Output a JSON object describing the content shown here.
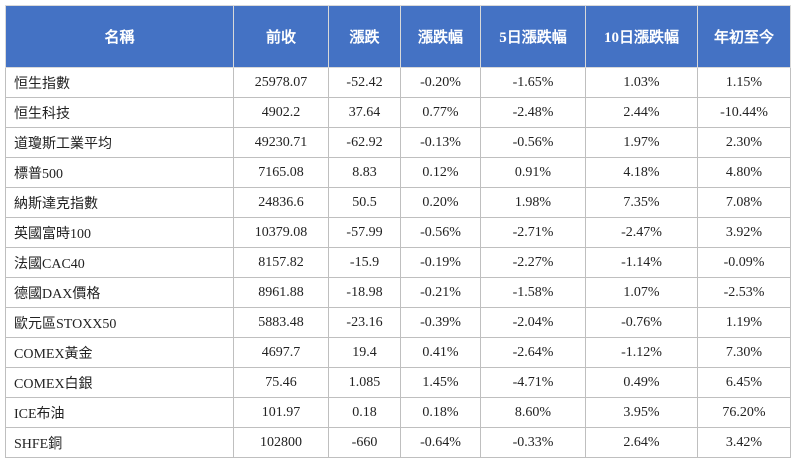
{
  "table": {
    "header": [
      "名稱",
      "前收",
      "漲跌",
      "漲跌幅",
      "5日漲跌幅",
      "10日漲跌幅",
      "年初至今"
    ],
    "rows": [
      [
        "恒生指數",
        "25978.07",
        "-52.42",
        "-0.20%",
        "-1.65%",
        "1.03%",
        "1.15%"
      ],
      [
        "恒生科技",
        "4902.2",
        "37.64",
        "0.77%",
        "-2.48%",
        "2.44%",
        "-10.44%"
      ],
      [
        "道瓊斯工業平均",
        "49230.71",
        "-62.92",
        "-0.13%",
        "-0.56%",
        "1.97%",
        "2.30%"
      ],
      [
        "標普500",
        "7165.08",
        "8.83",
        "0.12%",
        "0.91%",
        "4.18%",
        "4.80%"
      ],
      [
        "納斯達克指數",
        "24836.6",
        "50.5",
        "0.20%",
        "1.98%",
        "7.35%",
        "7.08%"
      ],
      [
        "英國富時100",
        "10379.08",
        "-57.99",
        "-0.56%",
        "-2.71%",
        "-2.47%",
        "3.92%"
      ],
      [
        "法國CAC40",
        "8157.82",
        "-15.9",
        "-0.19%",
        "-2.27%",
        "-1.14%",
        "-0.09%"
      ],
      [
        "德國DAX價格",
        "8961.88",
        "-18.98",
        "-0.21%",
        "-1.58%",
        "1.07%",
        "-2.53%"
      ],
      [
        "歐元區STOXX50",
        "5883.48",
        "-23.16",
        "-0.39%",
        "-2.04%",
        "-0.76%",
        "1.19%"
      ],
      [
        "COMEX黃金",
        "4697.7",
        "19.4",
        "0.41%",
        "-2.64%",
        "-1.12%",
        "7.30%"
      ],
      [
        "COMEX白銀",
        "75.46",
        "1.085",
        "1.45%",
        "-4.71%",
        "0.49%",
        "6.45%"
      ],
      [
        "ICE布油",
        "101.97",
        "0.18",
        "0.18%",
        "8.60%",
        "3.95%",
        "76.20%"
      ],
      [
        "SHFE銅",
        "102800",
        "-660",
        "-0.64%",
        "-0.33%",
        "2.64%",
        "3.42%"
      ]
    ]
  }
}
